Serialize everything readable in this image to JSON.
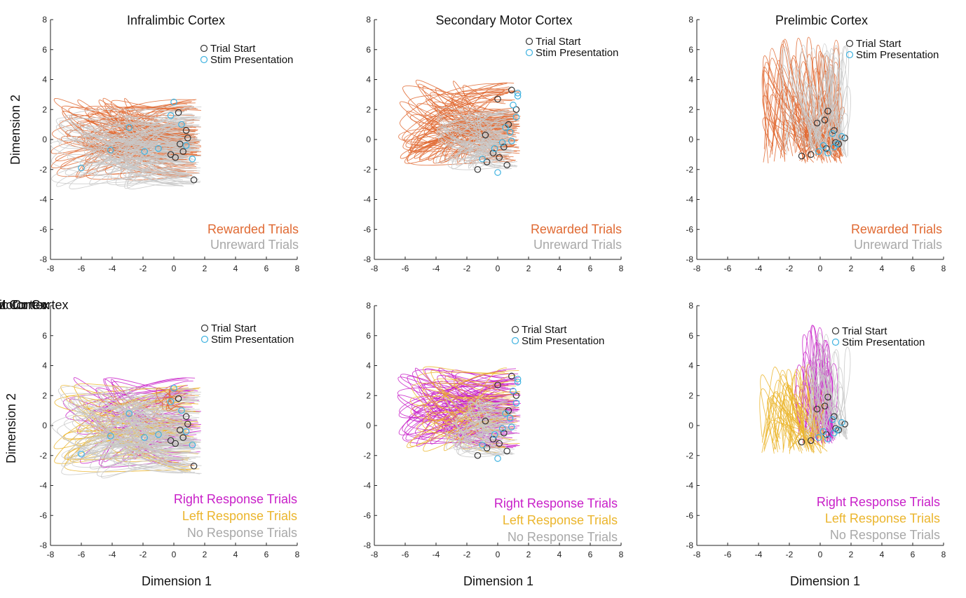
{
  "figure": {
    "ylabel": "Dimension 2",
    "xlabel": "Dimension 1"
  },
  "chart_data": [
    {
      "type": "line",
      "title": "Infralimbic Cortex",
      "xlim": [
        -8,
        8
      ],
      "ylim": [
        -8,
        8
      ],
      "ticks": [
        -8,
        -6,
        -4,
        -2,
        0,
        2,
        4,
        6,
        8
      ],
      "grid": false,
      "legend_placement": "top-right",
      "markers": [
        {
          "label": "Trial Start",
          "color": "#333333"
        },
        {
          "label": "Stim Presentation",
          "color": "#3fb2e0"
        }
      ],
      "categories": [
        {
          "label": "Rewarded Trials",
          "color": "#e06a33"
        },
        {
          "label": "Unreward Trials",
          "color": "#a8a8a8"
        }
      ],
      "series": [
        {
          "name": "Rewarded Trials",
          "color": "#e06a33",
          "count": 70,
          "x_range": [
            -8,
            1.8
          ],
          "y_range": [
            -2.5,
            2.7
          ]
        },
        {
          "name": "Unreward Trials",
          "color": "#c8c8c8",
          "count": 70,
          "x_range": [
            -8,
            1.8
          ],
          "y_range": [
            -3.2,
            2.3
          ]
        }
      ],
      "trial_start_points": [
        [
          0.3,
          1.8
        ],
        [
          0.9,
          0.1
        ],
        [
          0.6,
          -0.8
        ],
        [
          0.1,
          -1.2
        ],
        [
          1.3,
          -2.7
        ],
        [
          -0.2,
          -1.0
        ],
        [
          0.8,
          0.6
        ],
        [
          0.4,
          -0.3
        ]
      ],
      "stim_points": [
        [
          -0.2,
          1.6
        ],
        [
          0.5,
          1.0
        ],
        [
          -1.0,
          -0.6
        ],
        [
          -1.9,
          -0.8
        ],
        [
          -2.9,
          0.8
        ],
        [
          -4.1,
          -0.7
        ],
        [
          -6.0,
          -1.9
        ],
        [
          0.8,
          -0.4
        ],
        [
          1.2,
          -1.3
        ],
        [
          0.0,
          2.5
        ]
      ]
    },
    {
      "type": "line",
      "title": "Secondary Motor Cortex",
      "xlim": [
        -8,
        8
      ],
      "ylim": [
        -8,
        8
      ],
      "ticks": [
        -8,
        -6,
        -4,
        -2,
        0,
        2,
        4,
        6,
        8
      ],
      "grid": false,
      "legend_placement": "top-right",
      "markers": [
        {
          "label": "Trial Start",
          "color": "#333333"
        },
        {
          "label": "Stim Presentation",
          "color": "#3fb2e0"
        }
      ],
      "categories": [
        {
          "label": "Rewarded Trials",
          "color": "#e06a33"
        },
        {
          "label": "Unreward Trials",
          "color": "#a8a8a8"
        }
      ],
      "series": [
        {
          "name": "Rewarded Trials",
          "color": "#e06a33",
          "count": 70,
          "x_range": [
            -6.5,
            1.5
          ],
          "y_range": [
            -1.5,
            3.9
          ]
        },
        {
          "name": "Unreward Trials",
          "color": "#c8c8c8",
          "count": 50,
          "x_range": [
            -4.0,
            1.3
          ],
          "y_range": [
            -2.0,
            2.0
          ]
        }
      ],
      "trial_start_points": [
        [
          -0.8,
          0.3
        ],
        [
          0.9,
          3.3
        ],
        [
          0.0,
          2.7
        ],
        [
          1.2,
          2.0
        ],
        [
          0.7,
          1.0
        ],
        [
          -1.3,
          -2.0
        ],
        [
          -0.7,
          -1.5
        ],
        [
          0.1,
          -1.2
        ],
        [
          0.4,
          -0.5
        ],
        [
          -0.3,
          -0.9
        ],
        [
          0.6,
          -1.7
        ]
      ],
      "stim_points": [
        [
          1.3,
          2.9
        ],
        [
          1.0,
          2.3
        ],
        [
          1.2,
          1.5
        ],
        [
          0.8,
          0.5
        ],
        [
          0.3,
          -0.2
        ],
        [
          -0.2,
          -0.6
        ],
        [
          0.0,
          -2.2
        ],
        [
          -1.0,
          -1.3
        ],
        [
          0.9,
          -0.1
        ],
        [
          1.3,
          3.1
        ],
        [
          0.5,
          0.8
        ]
      ]
    },
    {
      "type": "line",
      "title": "Prelimbic Cortex",
      "xlim": [
        -8,
        8
      ],
      "ylim": [
        -8,
        8
      ],
      "ticks": [
        -8,
        -6,
        -4,
        -2,
        0,
        2,
        4,
        6,
        8
      ],
      "grid": false,
      "legend_placement": "top-right",
      "markers": [
        {
          "label": "Trial Start",
          "color": "#333333"
        },
        {
          "label": "Stim Presentation",
          "color": "#3fb2e0"
        }
      ],
      "categories": [
        {
          "label": "Rewarded Trials",
          "color": "#e06a33"
        },
        {
          "label": "Unreward Trials",
          "color": "#a8a8a8"
        }
      ],
      "series": [
        {
          "name": "Rewarded Trials",
          "color": "#e06a33",
          "count": 70,
          "x_range": [
            -3.7,
            1.5
          ],
          "y_range": [
            -1.6,
            6.9
          ]
        },
        {
          "name": "Unreward Trials",
          "color": "#c8c8c8",
          "count": 40,
          "x_range": [
            -2.5,
            1.8
          ],
          "y_range": [
            -1.2,
            6.5
          ]
        }
      ],
      "trial_start_points": [
        [
          0.5,
          1.9
        ],
        [
          0.3,
          1.3
        ],
        [
          -0.2,
          1.1
        ],
        [
          1.6,
          0.1
        ],
        [
          0.9,
          0.6
        ],
        [
          1.2,
          -0.3
        ],
        [
          0.4,
          -0.6
        ],
        [
          -0.6,
          -1.0
        ],
        [
          -1.2,
          -1.1
        ],
        [
          1.0,
          -0.2
        ]
      ],
      "stim_points": [
        [
          0.8,
          0.4
        ],
        [
          1.1,
          -0.3
        ],
        [
          0.5,
          -0.9
        ],
        [
          -0.1,
          -0.8
        ],
        [
          1.4,
          0.2
        ],
        [
          0.2,
          -0.4
        ],
        [
          0.9,
          -0.5
        ]
      ]
    },
    {
      "type": "line",
      "title": "Infralimbic Cortex",
      "xlim": [
        -8,
        8
      ],
      "ylim": [
        -8,
        8
      ],
      "ticks": [
        -8,
        -6,
        -4,
        -2,
        0,
        2,
        4,
        6,
        8
      ],
      "grid": false,
      "legend_placement": "top-right",
      "markers": [
        {
          "label": "Trial Start",
          "color": "#333333"
        },
        {
          "label": "Stim Presentation",
          "color": "#3fb2e0"
        }
      ],
      "categories": [
        {
          "label": "Right Response Trials",
          "color": "#c81fc8"
        },
        {
          "label": "Left Response Trials",
          "color": "#ebb52c"
        },
        {
          "label": "No Response Trials",
          "color": "#a8a8a8"
        }
      ],
      "series": [
        {
          "name": "Right Response Trials",
          "color": "#c81fc8",
          "count": 30,
          "x_range": [
            -7.5,
            1.8
          ],
          "y_range": [
            -2.8,
            3.2
          ]
        },
        {
          "name": "Left Response Trials",
          "color": "#ebb52c",
          "count": 30,
          "x_range": [
            -8,
            1.8
          ],
          "y_range": [
            -3.1,
            2.9
          ]
        },
        {
          "name": "No Response Trials",
          "color": "#c8c8c8",
          "count": 70,
          "x_range": [
            -8,
            1.8
          ],
          "y_range": [
            -3.4,
            2.5
          ]
        },
        {
          "name": "Rewarded Trials",
          "color": "#e06a33",
          "count": 8,
          "x_range": [
            -1.2,
            1.0
          ],
          "y_range": [
            1.0,
            2.6
          ]
        }
      ],
      "trial_start_points": [
        [
          0.3,
          1.8
        ],
        [
          0.9,
          0.1
        ],
        [
          0.6,
          -0.8
        ],
        [
          0.1,
          -1.2
        ],
        [
          1.3,
          -2.7
        ],
        [
          -0.2,
          -1.0
        ],
        [
          0.8,
          0.6
        ],
        [
          0.4,
          -0.3
        ]
      ],
      "stim_points": [
        [
          -0.2,
          1.6
        ],
        [
          0.5,
          1.0
        ],
        [
          -1.0,
          -0.6
        ],
        [
          -1.9,
          -0.8
        ],
        [
          -2.9,
          0.8
        ],
        [
          -4.1,
          -0.7
        ],
        [
          -6.0,
          -1.9
        ],
        [
          0.8,
          -0.4
        ],
        [
          1.2,
          -1.3
        ],
        [
          0.0,
          2.5
        ]
      ]
    },
    {
      "type": "line",
      "title": "Secondary Motor Cortex",
      "xlim": [
        -8,
        8
      ],
      "ylim": [
        -8,
        8
      ],
      "ticks": [
        -8,
        -6,
        -4,
        -2,
        0,
        2,
        4,
        6,
        8
      ],
      "grid": false,
      "legend_placement": "top-right",
      "markers": [
        {
          "label": "Trial Start",
          "color": "#333333"
        },
        {
          "label": "Stim Presentation",
          "color": "#3fb2e0"
        }
      ],
      "categories": [
        {
          "label": "Right Response Trials",
          "color": "#c81fc8"
        },
        {
          "label": "Left Response Trials",
          "color": "#ebb52c"
        },
        {
          "label": "No Response Trials",
          "color": "#a8a8a8"
        }
      ],
      "series": [
        {
          "name": "Right Response Trials",
          "color": "#c81fc8",
          "count": 60,
          "x_range": [
            -6.5,
            1.5
          ],
          "y_range": [
            -1.5,
            3.8
          ]
        },
        {
          "name": "Left Response Trials",
          "color": "#ebb52c",
          "count": 25,
          "x_range": [
            -6.0,
            1.5
          ],
          "y_range": [
            -1.8,
            3.9
          ]
        },
        {
          "name": "No Response Trials",
          "color": "#c8c8c8",
          "count": 40,
          "x_range": [
            -3.5,
            1.3
          ],
          "y_range": [
            -2.0,
            1.8
          ]
        }
      ],
      "trial_start_points": [
        [
          -0.8,
          0.3
        ],
        [
          0.9,
          3.3
        ],
        [
          0.0,
          2.7
        ],
        [
          1.2,
          2.0
        ],
        [
          0.7,
          1.0
        ],
        [
          -1.3,
          -2.0
        ],
        [
          -0.7,
          -1.5
        ],
        [
          0.1,
          -1.2
        ],
        [
          0.4,
          -0.5
        ],
        [
          -0.3,
          -0.9
        ],
        [
          0.6,
          -1.7
        ]
      ],
      "stim_points": [
        [
          1.3,
          2.9
        ],
        [
          1.0,
          2.3
        ],
        [
          1.2,
          1.5
        ],
        [
          0.8,
          0.5
        ],
        [
          0.3,
          -0.2
        ],
        [
          -0.2,
          -0.6
        ],
        [
          0.0,
          -2.2
        ],
        [
          -1.0,
          -1.3
        ],
        [
          0.9,
          -0.1
        ],
        [
          1.3,
          3.1
        ],
        [
          0.5,
          0.8
        ]
      ]
    },
    {
      "type": "line",
      "title": "Prelimbic Cortex",
      "xlim": [
        -8,
        8
      ],
      "ylim": [
        -8,
        8
      ],
      "ticks": [
        -8,
        -6,
        -4,
        -2,
        0,
        2,
        4,
        6,
        8
      ],
      "grid": false,
      "legend_placement": "top-right",
      "markers": [
        {
          "label": "Trial Start",
          "color": "#333333"
        },
        {
          "label": "Stim Presentation",
          "color": "#3fb2e0"
        }
      ],
      "categories": [
        {
          "label": "Right Response Trials",
          "color": "#c81fc8"
        },
        {
          "label": "Left Response Trials",
          "color": "#ebb52c"
        },
        {
          "label": "No Response Trials",
          "color": "#a8a8a8"
        }
      ],
      "series": [
        {
          "name": "Right Response Trials",
          "color": "#c81fc8",
          "count": 40,
          "x_range": [
            -1.5,
            1.0
          ],
          "y_range": [
            -1.3,
            6.9
          ]
        },
        {
          "name": "Left Response Trials",
          "color": "#ebb52c",
          "count": 45,
          "x_range": [
            -3.8,
            0.5
          ],
          "y_range": [
            -1.9,
            4.4
          ]
        },
        {
          "name": "No Response Trials",
          "color": "#c8c8c8",
          "count": 30,
          "x_range": [
            -1.0,
            1.8
          ],
          "y_range": [
            -1.0,
            6.2
          ]
        }
      ],
      "trial_start_points": [
        [
          0.5,
          1.9
        ],
        [
          0.3,
          1.3
        ],
        [
          -0.2,
          1.1
        ],
        [
          1.6,
          0.1
        ],
        [
          0.9,
          0.6
        ],
        [
          1.2,
          -0.3
        ],
        [
          0.4,
          -0.6
        ],
        [
          -0.6,
          -1.0
        ],
        [
          -1.2,
          -1.1
        ],
        [
          1.0,
          -0.2
        ]
      ],
      "stim_points": [
        [
          0.8,
          0.4
        ],
        [
          1.1,
          -0.3
        ],
        [
          0.5,
          -0.9
        ],
        [
          -0.1,
          -0.8
        ],
        [
          1.4,
          0.2
        ],
        [
          0.2,
          -0.4
        ],
        [
          0.9,
          -0.5
        ]
      ]
    }
  ]
}
